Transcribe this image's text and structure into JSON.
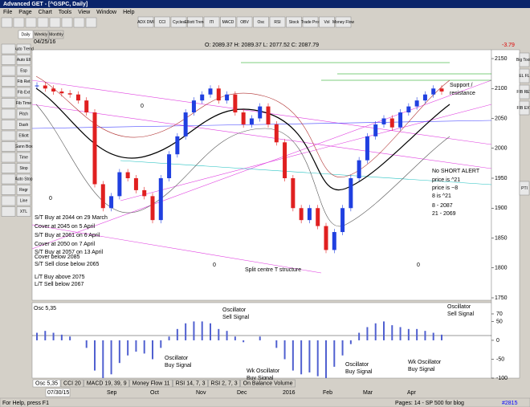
{
  "window": {
    "title": "Advanced GET - [^GSPC, Daily]"
  },
  "menu": [
    "File",
    "Page",
    "Chart",
    "Tools",
    "View",
    "Window",
    "Help"
  ],
  "toolbar": [
    "ADX DMI",
    "CCI",
    "Cycles",
    "Elliott Trend",
    "ITI",
    "MACD",
    "OBV",
    "Osc",
    "RSI",
    "Stock",
    "Trade Prof",
    "Vol",
    "Money Flow"
  ],
  "left_tools": [
    "Auto Trend",
    "Auto Ell",
    "Esp",
    "Fib Ret",
    "Fib Ext",
    "Fib Time",
    "Pitch",
    "Dash",
    "Elliott",
    "Gann Box",
    "Time",
    "Stop",
    "Auto Stop",
    "Regr",
    "Line",
    "XTL"
  ],
  "right_tools": [
    "Big Tools",
    "EL FL",
    "FIB RET",
    "FIB EXT",
    "PTI"
  ],
  "period_tabs": [
    "Daily",
    "Weekly",
    "Monthly"
  ],
  "header": {
    "date": "04/25/16",
    "ohlc": "O: 2089.37   H: 2089.37   L: 2077.52   C: 2087.79",
    "change": "-3.79"
  },
  "price": {
    "ylim": [
      1750,
      2150
    ],
    "yticks": [
      2150,
      2100,
      2050,
      2000,
      1950,
      1900,
      1850,
      1800,
      1750
    ],
    "closes": [
      2105,
      2100,
      2095,
      2092,
      2090,
      2080,
      2060,
      1940,
      1900,
      1920,
      1960,
      1950,
      1930,
      1920,
      1880,
      1950,
      1990,
      2020,
      2060,
      2080,
      2090,
      2100,
      2080,
      2090,
      2060,
      2040,
      2050,
      2070,
      2040,
      2010,
      1950,
      1900,
      1880,
      1900,
      1870,
      1830,
      1860,
      1900,
      1950,
      1980,
      2020,
      2040,
      2050,
      2035,
      2060,
      2070,
      2080,
      2090,
      2100,
      2095
    ]
  },
  "annotations": [
    "Support /",
    "resistance",
    "No SHORT ALERT",
    "price is ^21",
    "price is ~8",
    "8 is ^21",
    "8    - 2087",
    "21  - 2069",
    "S/T Buy at 2044 on 29 March",
    "Cover at 2045 on 5 April",
    "S/T Buy at 2061 on 6 April",
    "Cover at 2050 on 7 April",
    "S/T Buy at 2057 on 13 April",
    "Cover below 2085",
    "S/T Sell close below 2065",
    "L/T Buy above 2075",
    "L/T Sell below 2067",
    "Split centre T structure",
    "0",
    "0",
    "0",
    "0"
  ],
  "oscillator": {
    "label": "Osc 5,35",
    "ylim": [
      -100,
      70
    ],
    "yticks": [
      70,
      50,
      0,
      -50,
      -100
    ],
    "values": [
      20,
      25,
      20,
      15,
      10,
      0,
      -20,
      -80,
      -100,
      -90,
      -60,
      -40,
      -30,
      -35,
      -50,
      -20,
      10,
      30,
      45,
      50,
      50,
      45,
      30,
      25,
      10,
      -5,
      0,
      10,
      0,
      -20,
      -50,
      -80,
      -90,
      -85,
      -95,
      -100,
      -70,
      -40,
      -10,
      20,
      35,
      45,
      50,
      40,
      35,
      30,
      30,
      25,
      20,
      15
    ],
    "notes": [
      "Oscillator",
      "Sell Signal",
      "Oscillator",
      "Buy Signal",
      "Wk Oscillator",
      "Buy Signal",
      "Oscillator",
      "Buy Signal",
      "Wk Oscillator",
      "Buy Signal",
      "Oscillator",
      "Sell Signal"
    ]
  },
  "indicator_tabs": [
    "Osc 5,35",
    "CCI 20",
    "MACD 19, 39, 9",
    "Money Flow 11",
    "RSI 14, 7, 3",
    "RSI 2, 7, 3",
    "On Balance Volume"
  ],
  "date_axis": {
    "start": "07/30/15",
    "labels": [
      "Sep",
      "Oct",
      "Nov",
      "Dec",
      "2016",
      "Feb",
      "Mar",
      "Apr"
    ]
  },
  "status": {
    "help": "For Help, press F1",
    "page": "Pages: 14 - SP 500 for blog",
    "count": "#2815"
  }
}
